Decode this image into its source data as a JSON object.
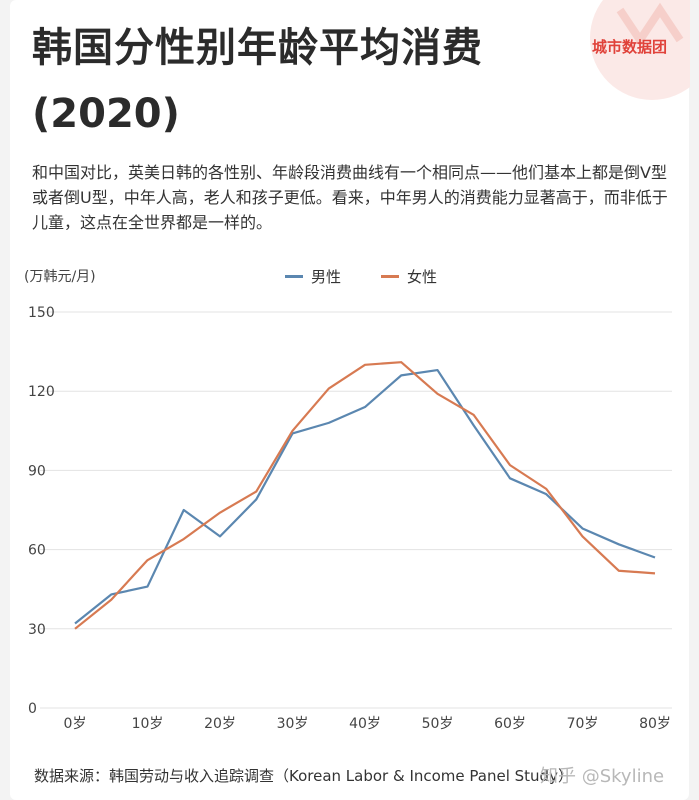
{
  "title": "韩国分性别年龄平均消费",
  "title_year": "(2020)",
  "brand": "城市数据团",
  "description": "和中国对比，英美日韩的各性别、年龄段消费曲线有一个相同点——他们基本上都是倒V型或者倒U型，中年人高，老人和孩子更低。看来，中年男人的消费能力显著高于，而非低于儿童，这点在全世界都是一样的。",
  "unit": "(万韩元/月)",
  "source": "数据来源：韩国劳动与收入追踪调查（Korean Labor & Income Panel Study）",
  "watermark": "知乎 @Skyline",
  "colors": {
    "male": "#5b87b0",
    "female": "#d77a52",
    "grid": "#e3e3e3"
  },
  "chart_data": {
    "type": "line",
    "x": [
      0,
      5,
      10,
      15,
      20,
      25,
      30,
      35,
      40,
      45,
      50,
      55,
      60,
      65,
      70,
      75,
      80
    ],
    "x_ticks": [
      0,
      10,
      20,
      30,
      40,
      50,
      60,
      70,
      80
    ],
    "x_tick_labels": [
      "0岁",
      "10岁",
      "20岁",
      "30岁",
      "40岁",
      "50岁",
      "60岁",
      "70岁",
      "80岁"
    ],
    "y_ticks": [
      0,
      30,
      60,
      90,
      120,
      150
    ],
    "xlim": [
      0,
      80
    ],
    "ylim": [
      0,
      150
    ],
    "grid": true,
    "legend_position": "top-center",
    "series": [
      {
        "name": "男性",
        "color": "#5b87b0",
        "values": [
          32,
          43,
          46,
          75,
          65,
          79,
          104,
          108,
          114,
          126,
          128,
          107,
          87,
          81,
          68,
          62,
          57
        ]
      },
      {
        "name": "女性",
        "color": "#d77a52",
        "values": [
          30,
          41,
          56,
          64,
          74,
          82,
          105,
          121,
          130,
          131,
          119,
          111,
          92,
          83,
          65,
          52,
          51
        ]
      }
    ]
  }
}
